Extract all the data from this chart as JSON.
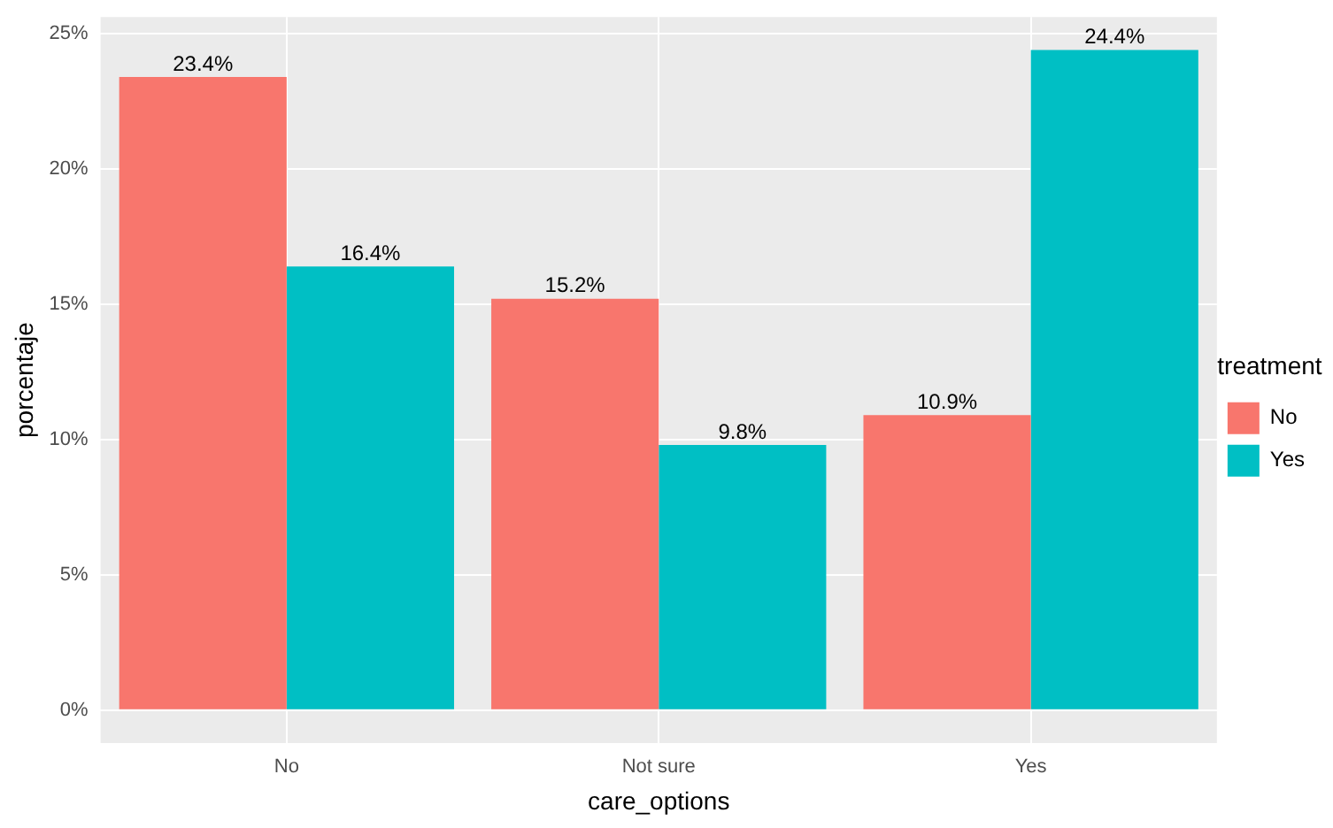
{
  "chart_data": {
    "type": "bar",
    "xlabel": "care_options",
    "ylabel": "porcentaje",
    "legend_title": "treatment",
    "categories": [
      "No",
      "Not sure",
      "Yes"
    ],
    "series": [
      {
        "name": "No",
        "color": "#f8766d",
        "values": [
          23.4,
          15.2,
          10.9
        ],
        "value_labels": [
          "23.4%",
          "15.2%",
          "10.9%"
        ]
      },
      {
        "name": "Yes",
        "color": "#00bfc4",
        "values": [
          16.4,
          9.8,
          24.4
        ],
        "value_labels": [
          "16.4%",
          "9.8%",
          "24.4%"
        ]
      }
    ],
    "ylim": [
      -1.22,
      25.62
    ],
    "yticks": [
      {
        "value": 0,
        "label": "0%"
      },
      {
        "value": 5,
        "label": "5%"
      },
      {
        "value": 10,
        "label": "10%"
      },
      {
        "value": 15,
        "label": "15%"
      },
      {
        "value": 20,
        "label": "20%"
      },
      {
        "value": 25,
        "label": "25%"
      }
    ],
    "grid": true,
    "legend": "right"
  }
}
